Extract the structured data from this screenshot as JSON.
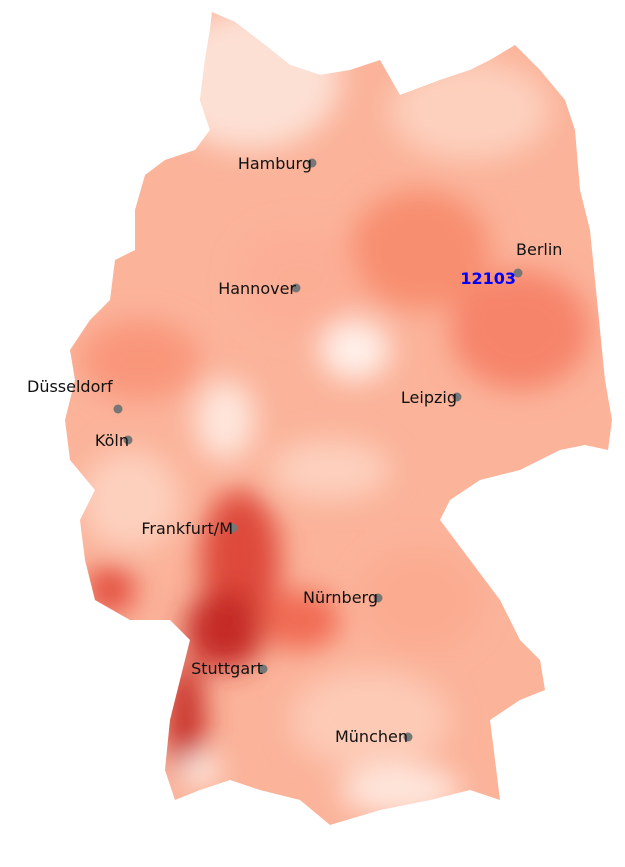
{
  "map": {
    "colormap": "Reds",
    "colors": {
      "low": "#fff0ea",
      "mid": "#fca084",
      "high": "#b9191e",
      "city_marker": "#777777"
    },
    "highlight": {
      "label": "12103",
      "color": "#0000ff"
    },
    "cities": [
      "Hamburg",
      "Berlin",
      "Hannover",
      "Düsseldorf",
      "Leipzig",
      "Köln",
      "Frankfurt/M",
      "Nürnberg",
      "Stuttgart",
      "München"
    ]
  }
}
